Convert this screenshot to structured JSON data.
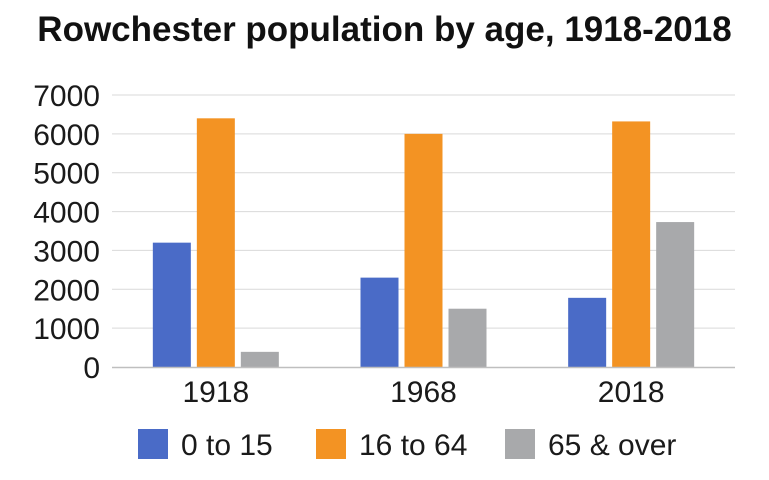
{
  "chart_data": {
    "type": "bar",
    "title": "Rowchester population by age, 1918-2018",
    "categories": [
      "1918",
      "1968",
      "2018"
    ],
    "series": [
      {
        "name": "0 to 15",
        "color": "#4a6bc7",
        "values": [
          3200,
          2300,
          1780
        ]
      },
      {
        "name": "16 to 64",
        "color": "#f39323",
        "values": [
          6400,
          6000,
          6320
        ]
      },
      {
        "name": "65 & over",
        "color": "#a8a9ab",
        "values": [
          390,
          1500,
          3730
        ]
      }
    ],
    "ylim": [
      0,
      7000
    ],
    "yticks": [
      0,
      1000,
      2000,
      3000,
      4000,
      5000,
      6000,
      7000
    ],
    "xlabel": "",
    "ylabel": "",
    "grid": true,
    "legend": "bottom"
  }
}
